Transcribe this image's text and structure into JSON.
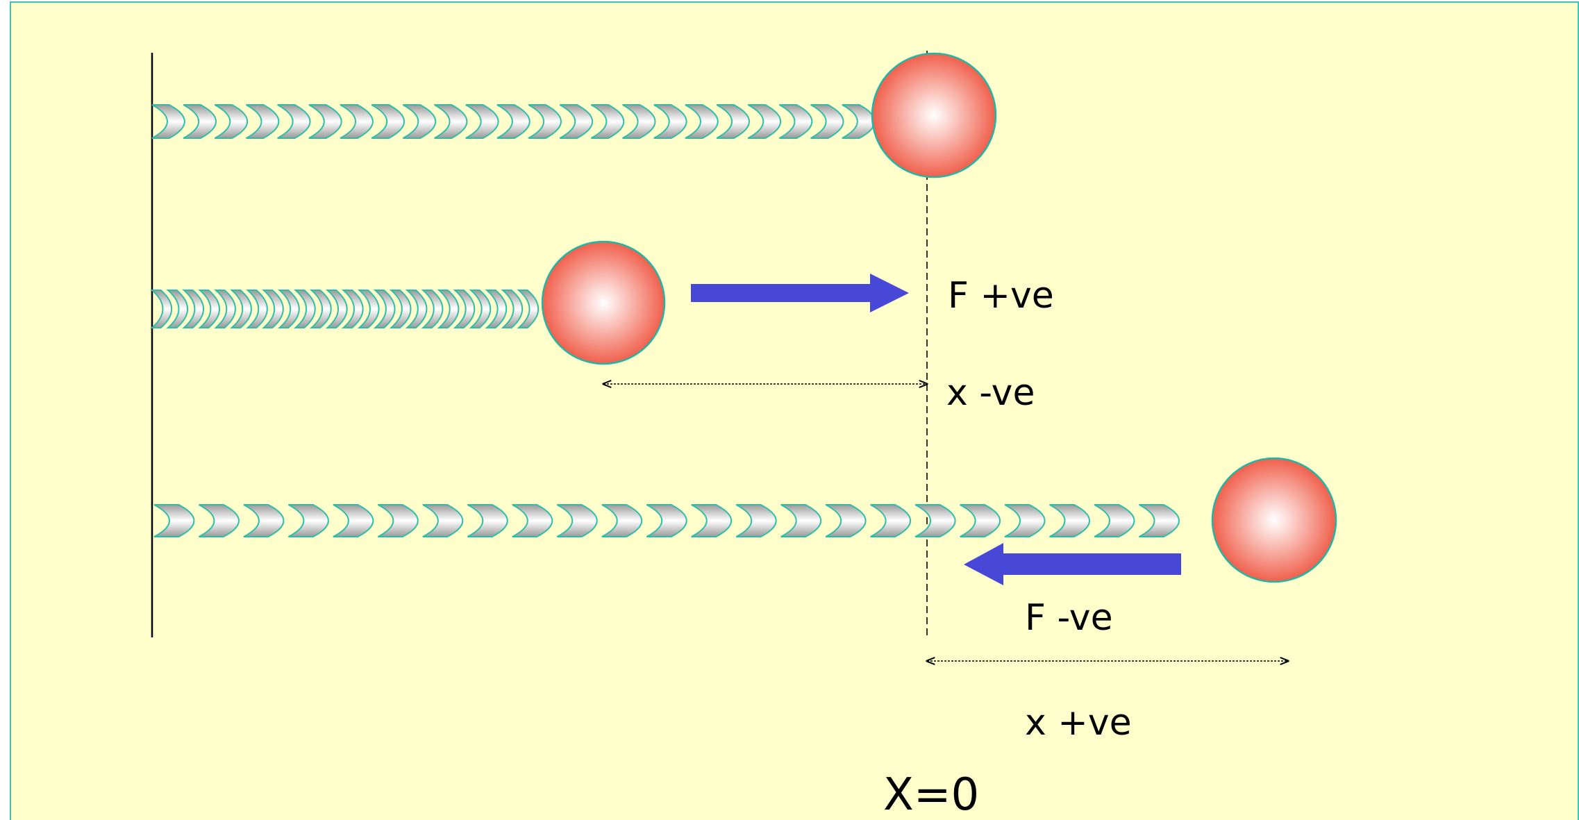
{
  "labels": {
    "force_positive": "F +ve",
    "displacement_negative": "x -ve",
    "force_negative": "F -ve",
    "displacement_positive": "x +ve",
    "equilibrium": "X=0"
  },
  "colors": {
    "background": "#FFFFCC",
    "border": "#3CC8B4",
    "ball_center": "#FFFFFF",
    "ball_edge": "#F0604C",
    "ball_outline": "#1FB7A3",
    "arrow": "#4848D8",
    "coil_light": "#FFFFFF",
    "coil_dark": "#9A9A9A",
    "coil_outline": "#2DBEAA"
  },
  "icons": {
    "wall": "vertical-wall-line",
    "equilibrium_line": "dashed-vertical-line",
    "mass": "red-sphere",
    "spring": "coil-spring",
    "force_arrow": "block-arrow"
  }
}
